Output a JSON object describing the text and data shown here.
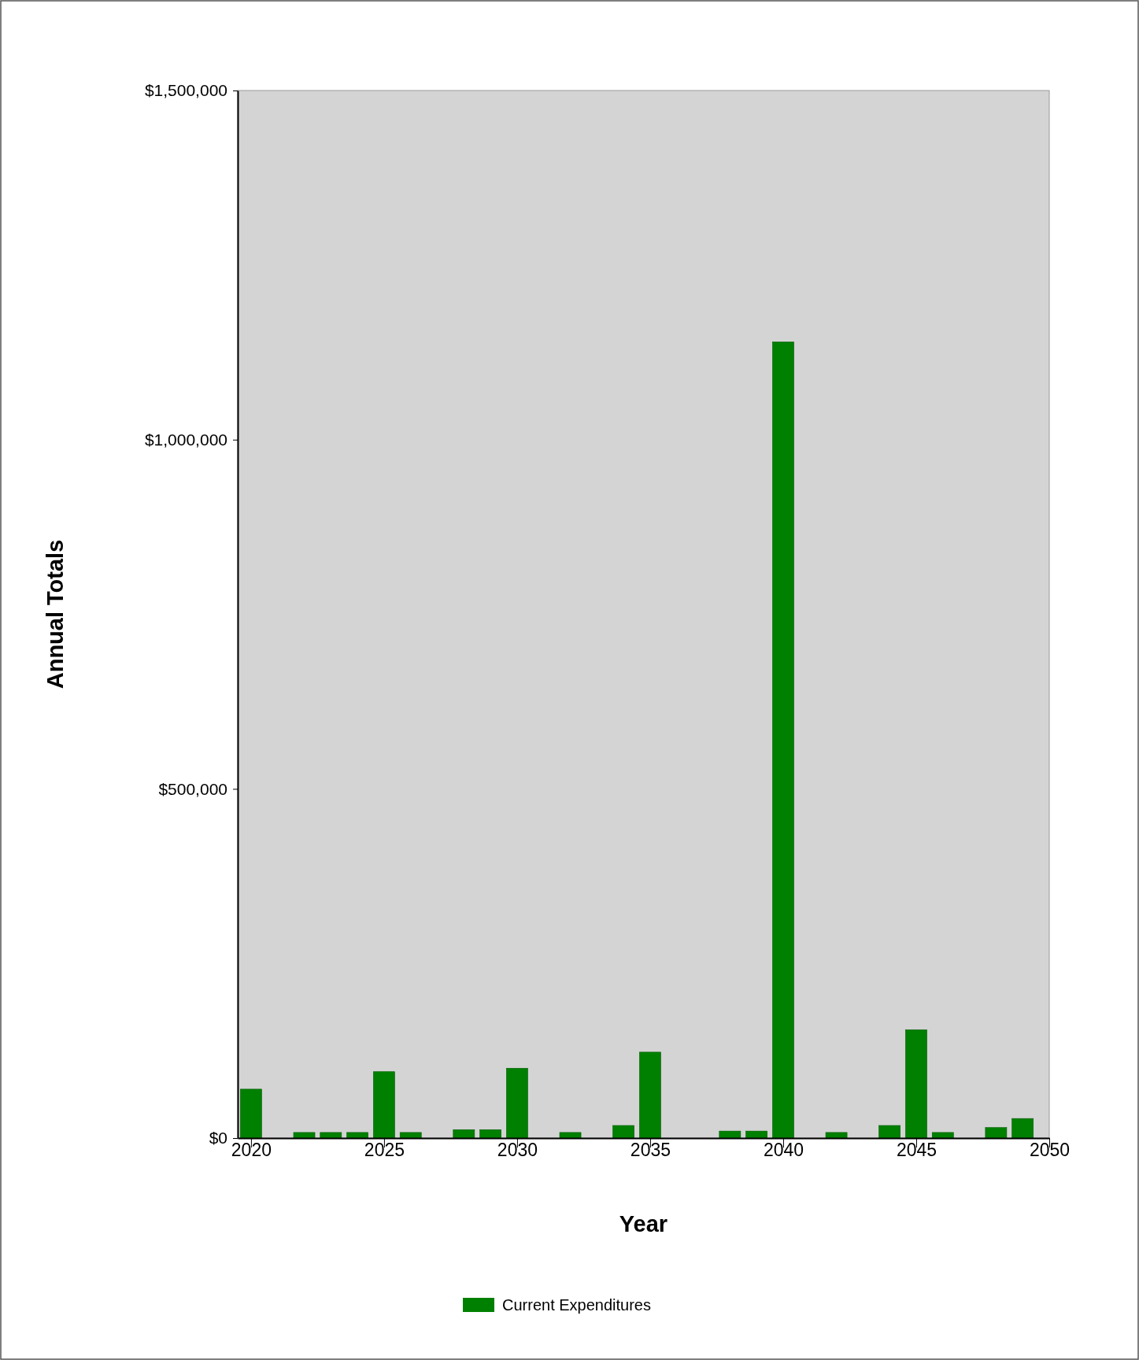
{
  "chart_data": {
    "type": "bar",
    "xlabel": "Year",
    "ylabel": "Annual Totals",
    "x": [
      2020,
      2022,
      2023,
      2024,
      2025,
      2026,
      2028,
      2029,
      2030,
      2032,
      2034,
      2035,
      2038,
      2039,
      2040,
      2042,
      2044,
      2045,
      2046,
      2048,
      2049
    ],
    "series": [
      {
        "name": "Current Expenditures",
        "color": "#008000",
        "values": [
          70000,
          8000,
          8000,
          8000,
          95000,
          8000,
          12000,
          12000,
          100000,
          8000,
          18000,
          123000,
          10000,
          10000,
          1140000,
          8000,
          18000,
          155000,
          8000,
          15000,
          28000
        ]
      }
    ],
    "xlim": [
      2019.5,
      2050
    ],
    "xticks": [
      2020,
      2025,
      2030,
      2035,
      2040,
      2045,
      2050
    ],
    "ylim": [
      0,
      1500000
    ],
    "yticks": [
      {
        "value": 0,
        "label": "$0"
      },
      {
        "value": 500000,
        "label": "$500,000"
      },
      {
        "value": 1000000,
        "label": "$1,000,000"
      },
      {
        "value": 1500000,
        "label": "$1,500,000"
      }
    ],
    "legend": "bottom"
  }
}
